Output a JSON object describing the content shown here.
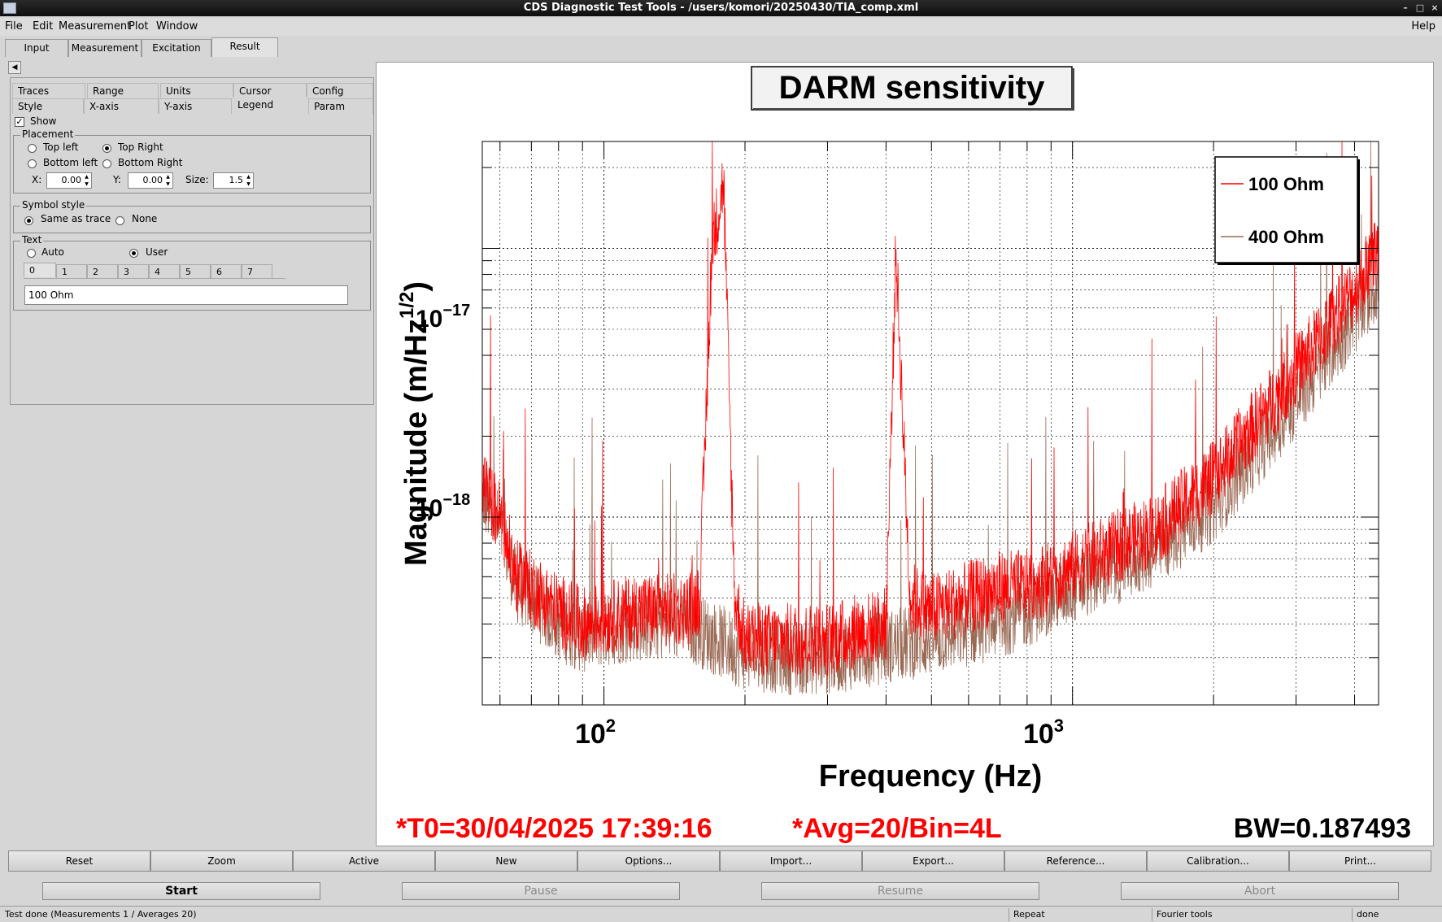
{
  "window": {
    "title": "CDS Diagnostic Test Tools - /users/komori/20250430/TIA_comp.xml"
  },
  "menubar": {
    "file": "File",
    "edit": "Edit",
    "measurement": "Measurement",
    "plot": "Plot",
    "window": "Window",
    "help": "Help"
  },
  "main_tabs": [
    "Input",
    "Measurement",
    "Excitation",
    "Result"
  ],
  "active_main_tab": "Result",
  "option_tabs": {
    "row1": [
      "Traces",
      "Range",
      "Units",
      "Cursor",
      "Config"
    ],
    "row2": [
      "Style",
      "X-axis",
      "Y-axis",
      "Legend",
      "Param"
    ],
    "active": "Legend"
  },
  "legend_panel": {
    "show_label": "Show",
    "show_checked": true,
    "placement_title": "Placement",
    "top_left": "Top left",
    "top_right": "Top Right",
    "bottom_left": "Bottom left",
    "bottom_right": "Bottom Right",
    "selected_placement": "Top Right",
    "x_label": "X:",
    "x_value": "0.00",
    "y_label": "Y:",
    "y_value": "0.00",
    "size_label": "Size:",
    "size_value": "1.5",
    "symbol_title": "Symbol style",
    "same_as_trace": "Same as trace",
    "none": "None",
    "text_title": "Text",
    "auto": "Auto",
    "user": "User",
    "text_tabs": [
      "0",
      "1",
      "2",
      "3",
      "4",
      "5",
      "6",
      "7"
    ],
    "text_value": "100 Ohm"
  },
  "plot": {
    "title": "DARM sensitivity",
    "xlabel": "Frequency (Hz)",
    "ylabel_main": "Magnitude (m/Hz",
    "ylabel_sup": "1/2",
    "ylabel_close": ")",
    "x_ticks": [
      {
        "base": "10",
        "exp": "2"
      },
      {
        "base": "10",
        "exp": "3"
      }
    ],
    "y_ticks": [
      {
        "base": "10",
        "exp": "−17"
      },
      {
        "base": "10",
        "exp": "−18"
      }
    ],
    "t0": "*T0=30/04/2025 17:39:16",
    "avg": "*Avg=20/Bin=4L",
    "bw": "BW=0.187493",
    "colors": {
      "trace1": "#ff0000",
      "trace2": "#9a6a55"
    }
  },
  "chart_data": {
    "type": "line",
    "title": "DARM sensitivity",
    "xlabel": "Frequency (Hz)",
    "ylabel": "Magnitude (m/Hz^1/2)",
    "xscale": "log",
    "yscale": "log",
    "xlim": [
      55,
      4500
    ],
    "ylim": [
      2e-19,
      2.5e-17
    ],
    "legend_position": "top-right",
    "grid": true,
    "series": [
      {
        "name": "100 Ohm",
        "x": [
          55,
          60,
          65,
          70,
          80,
          90,
          100,
          120,
          150,
          160,
          170,
          180,
          190,
          200,
          250,
          300,
          400,
          420,
          450,
          500,
          600,
          700,
          800,
          1000,
          1500,
          2000,
          3000,
          4000,
          4500
        ],
        "y": [
          1.3e-18,
          1e-18,
          6e-19,
          5.5e-19,
          4.5e-19,
          4e-19,
          4.2e-19,
          4.5e-19,
          4.5e-19,
          5e-19,
          1e-17,
          1.8e-17,
          5e-19,
          3.5e-19,
          3.5e-19,
          3.5e-19,
          4e-19,
          1e-17,
          5e-19,
          4.5e-19,
          5e-19,
          5.5e-19,
          5.5e-19,
          6.5e-19,
          9e-19,
          1.4e-18,
          3.5e-18,
          7e-18,
          1e-17
        ]
      },
      {
        "name": "400 Ohm",
        "x": [
          55,
          60,
          65,
          70,
          80,
          90,
          100,
          120,
          150,
          200,
          250,
          300,
          400,
          500,
          600,
          700,
          800,
          1000,
          1500,
          2000,
          3000,
          4000,
          4500
        ],
        "y": [
          1.2e-18,
          9e-19,
          5.5e-19,
          5e-19,
          4e-19,
          3.6e-19,
          3.8e-19,
          4e-19,
          4e-19,
          3.1e-19,
          3e-19,
          3e-19,
          3.3e-19,
          3.5e-19,
          3.8e-19,
          4.1e-19,
          4.5e-19,
          5.5e-19,
          7.5e-19,
          1.1e-18,
          2.7e-18,
          5.5e-18,
          7.5e-18
        ]
      }
    ]
  },
  "buttons": [
    "Reset",
    "Zoom",
    "Active",
    "New",
    "Options...",
    "Import...",
    "Export...",
    "Reference...",
    "Calibration...",
    "Print..."
  ],
  "control": {
    "start": "Start",
    "pause": "Pause",
    "resume": "Resume",
    "abort": "Abort"
  },
  "status": {
    "message": "Test done (Measurements 1 / Averages 20)",
    "repeat": "Repeat",
    "tools": "Fourier tools",
    "state": "done"
  }
}
